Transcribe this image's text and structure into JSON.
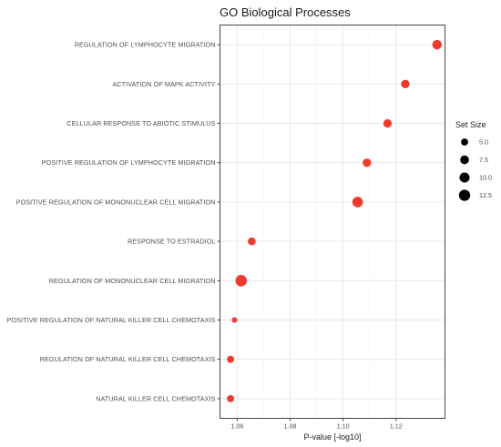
{
  "chart_data": {
    "type": "scatter",
    "title": "GO Biological Processes",
    "xlabel": "P-value [-log10]",
    "ylabel": "",
    "xlim": [
      1.0535,
      1.1385
    ],
    "x_ticks": [
      1.06,
      1.08,
      1.1,
      1.12
    ],
    "x_tick_labels": [
      "1.06",
      "1.08",
      "1.10",
      "1.12"
    ],
    "grid": true,
    "point_color": "#ee3b2e",
    "categories": [
      "REGULATION OF LYMPHOCYTE MIGRATION",
      "ACTIVATION OF MAPK ACTIVITY",
      "CELLULAR RESPONSE TO ABIOTIC STIMULUS",
      "POSITIVE REGULATION OF LYMPHOCYTE MIGRATION",
      "POSITIVE REGULATION OF MONONUCLEAR CELL MIGRATION",
      "RESPONSE TO ESTRADIOL",
      "REGULATION OF MONONUCLEAR CELL MIGRATION",
      "POSITIVE REGULATION OF NATURAL KILLER CELL CHEMOTAXIS",
      "REGULATION OF NATURAL KILLER CELL CHEMOTAXIS",
      "NATURAL KILLER CELL CHEMOTAXIS"
    ],
    "points": [
      {
        "category": "REGULATION OF LYMPHOCYTE MIGRATION",
        "x": 1.1355,
        "set_size": 9
      },
      {
        "category": "ACTIVATION OF MAPK ACTIVITY",
        "x": 1.1235,
        "set_size": 7
      },
      {
        "category": "CELLULAR RESPONSE TO ABIOTIC STIMULUS",
        "x": 1.1168,
        "set_size": 7
      },
      {
        "category": "POSITIVE REGULATION OF LYMPHOCYTE MIGRATION",
        "x": 1.109,
        "set_size": 7
      },
      {
        "category": "POSITIVE REGULATION OF MONONUCLEAR CELL MIGRATION",
        "x": 1.1055,
        "set_size": 11
      },
      {
        "category": "RESPONSE TO ESTRADIOL",
        "x": 1.0655,
        "set_size": 6
      },
      {
        "category": "REGULATION OF MONONUCLEAR CELL MIGRATION",
        "x": 1.0615,
        "set_size": 13
      },
      {
        "category": "POSITIVE REGULATION OF NATURAL KILLER CELL CHEMOTAXIS",
        "x": 1.059,
        "set_size": 3
      },
      {
        "category": "REGULATION OF NATURAL KILLER CELL CHEMOTAXIS",
        "x": 1.0575,
        "set_size": 5
      },
      {
        "category": "NATURAL KILLER CELL CHEMOTAXIS",
        "x": 1.0575,
        "set_size": 5
      }
    ],
    "legend": {
      "title": "Set Size",
      "placement": "right",
      "entries": [
        {
          "label": "5.0",
          "value": 5
        },
        {
          "label": "7.5",
          "value": 7.5
        },
        {
          "label": "10.0",
          "value": 10
        },
        {
          "label": "12.5",
          "value": 12.5
        }
      ]
    }
  }
}
